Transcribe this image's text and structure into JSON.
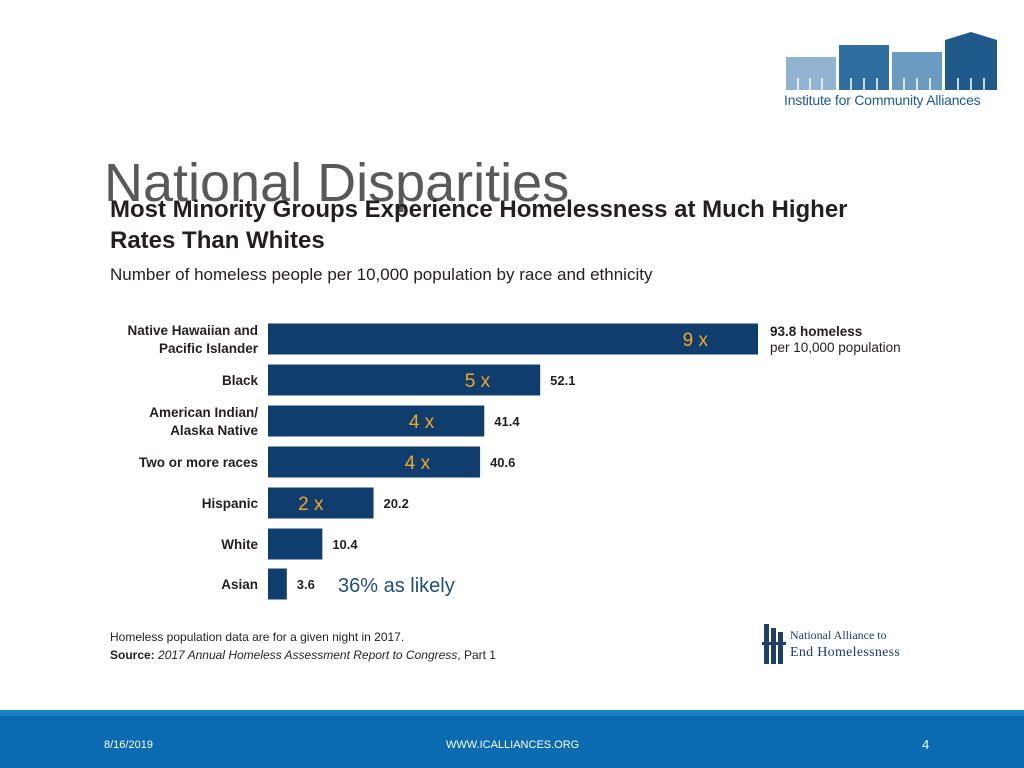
{
  "slide": {
    "title": "National Disparities",
    "logo_text": "Institute for Community Alliances"
  },
  "chart_data": {
    "type": "bar",
    "orientation": "horizontal",
    "title": "Most Minority Groups Experience Homelessness at Much Higher Rates Than Whites",
    "subtitle": "Number of homeless people per 10,000 population by race and ethnicity",
    "categories": [
      [
        "Native Hawaiian and",
        "Pacific Islander"
      ],
      [
        "Black"
      ],
      [
        "American Indian/",
        "Alaska Native"
      ],
      [
        "Two or more races"
      ],
      [
        "Hispanic"
      ],
      [
        "White"
      ],
      [
        "Asian"
      ]
    ],
    "values": [
      93.8,
      52.1,
      41.4,
      40.6,
      20.2,
      10.4,
      3.6
    ],
    "value_labels": [
      "93.8 homeless",
      "52.1",
      "41.4",
      "40.6",
      "20.2",
      "10.4",
      "3.6"
    ],
    "first_label_suffix": "per 10,000 population",
    "multipliers": [
      "9 x",
      "5 x",
      "4 x",
      "4 x",
      "2 x",
      "",
      ""
    ],
    "asian_note": "36% as likely",
    "xlim": [
      0,
      100
    ],
    "bar_color": "#0f3d6e",
    "multiplier_color": "#f5a623",
    "note_color": "#1f4e79"
  },
  "footnote": {
    "line1": "Homeless population data are for a given night in 2017.",
    "source_label": "Source:",
    "source_title": "2017 Annual Homeless Assessment Report to Congress",
    "source_suffix": ", Part 1"
  },
  "naeh_logo": {
    "line1": "National Alliance to",
    "line2": "End Homelessness"
  },
  "footer": {
    "date": "8/16/2019",
    "url": "WWW.ICALLIANCES.ORG",
    "page": "4"
  }
}
